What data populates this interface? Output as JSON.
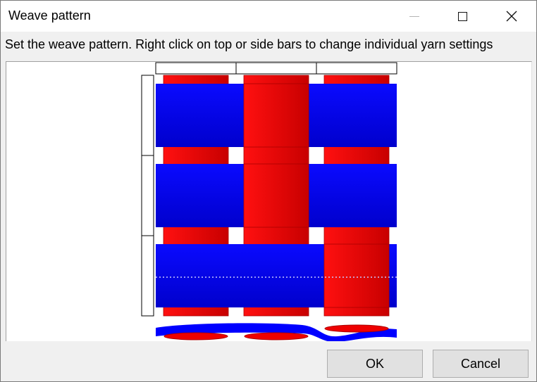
{
  "window": {
    "title": "Weave pattern",
    "controls": [
      "minimize-icon",
      "maximize-icon",
      "close-icon"
    ]
  },
  "instruction": "Set the weave pattern. Right click on top or side bars to change individual yarn settings",
  "weave": {
    "warp_count": 3,
    "weft_count": 3,
    "warp_color": "#ff0000",
    "weft_color": "#0000ff",
    "over": [
      [
        "weft",
        "warp",
        "weft"
      ],
      [
        "weft",
        "warp",
        "weft"
      ],
      [
        "weft",
        "weft",
        "warp"
      ]
    ]
  },
  "buttons": {
    "ok": "OK",
    "cancel": "Cancel"
  }
}
